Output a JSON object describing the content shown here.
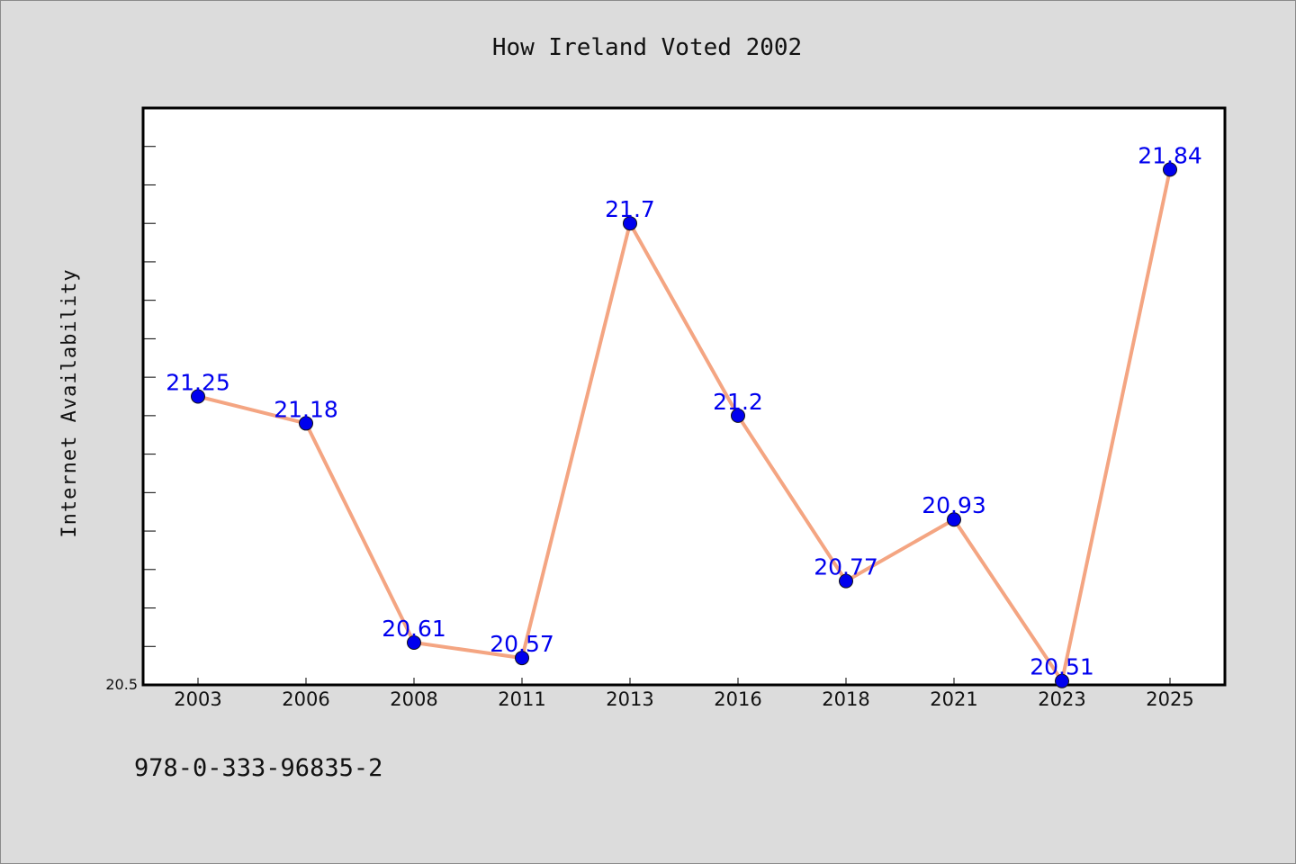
{
  "chart_data": {
    "type": "line",
    "title": "How Ireland Voted 2002",
    "xlabel": "",
    "ylabel": "Internet Availability",
    "categories": [
      "2003",
      "2006",
      "2008",
      "2011",
      "2013",
      "2016",
      "2018",
      "2021",
      "2023",
      "2025"
    ],
    "values": [
      21.25,
      21.18,
      20.61,
      20.57,
      21.7,
      21.2,
      20.77,
      20.93,
      20.51,
      21.84
    ],
    "data_labels": [
      "21.25",
      "21.18",
      "20.61",
      "20.57",
      "21.7",
      "21.2",
      "20.77",
      "20.93",
      "20.51",
      "21.84"
    ],
    "ylim": [
      20.5,
      22.0
    ],
    "y_tick_labels": [
      {
        "value": 20.5,
        "label": "20.5"
      }
    ],
    "y_minor_tick_step": 0.1,
    "grid": false,
    "legend": "none",
    "line_color": "#f4a582",
    "marker_color": "#0000ee",
    "label_color": "#0000ee"
  },
  "footer": {
    "isbn": "978-0-333-96835-2"
  }
}
